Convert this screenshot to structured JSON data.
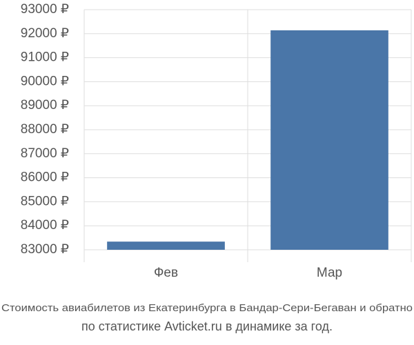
{
  "chart_data": {
    "type": "bar",
    "title": "Стоимость авиабилетов из Екатеринбурга в Бандар-Сери-Бегаван и обратно",
    "subtitle": "по статистике Avticket.ru в динамике за год.",
    "categories": [
      "Фев",
      "Мар"
    ],
    "values": [
      83340,
      92140
    ],
    "color": "#4a76a8",
    "ylim": [
      83000,
      93000
    ],
    "yticks": [
      {
        "value": 83000,
        "label": "83000 ₽"
      },
      {
        "value": 84000,
        "label": "84000 ₽"
      },
      {
        "value": 85000,
        "label": "85000 ₽"
      },
      {
        "value": 86000,
        "label": "86000 ₽"
      },
      {
        "value": 87000,
        "label": "87000 ₽"
      },
      {
        "value": 88000,
        "label": "88000 ₽"
      },
      {
        "value": 89000,
        "label": "89000 ₽"
      },
      {
        "value": 90000,
        "label": "90000 ₽"
      },
      {
        "value": 91000,
        "label": "91000 ₽"
      },
      {
        "value": 92000,
        "label": "92000 ₽"
      },
      {
        "value": 93000,
        "label": "93000 ₽"
      }
    ],
    "grid": true
  }
}
